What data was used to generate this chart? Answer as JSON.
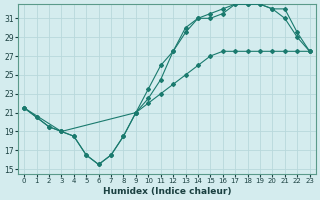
{
  "xlabel": "Humidex (Indice chaleur)",
  "bg_color": "#d4ecee",
  "grid_color": "#b8d8dc",
  "line_color": "#1a7a6e",
  "xlim": [
    -0.5,
    23.5
  ],
  "ylim": [
    14.5,
    32.5
  ],
  "xticks": [
    0,
    1,
    2,
    3,
    4,
    5,
    6,
    7,
    8,
    9,
    10,
    11,
    12,
    13,
    14,
    15,
    16,
    17,
    18,
    19,
    20,
    21,
    22,
    23
  ],
  "yticks": [
    15,
    17,
    19,
    21,
    23,
    25,
    27,
    29,
    31
  ],
  "curve1_x": [
    0,
    1,
    2,
    3,
    4,
    5,
    6,
    7,
    8,
    9,
    10,
    11,
    12,
    13,
    14,
    15,
    16,
    17,
    18,
    19,
    20,
    21,
    22,
    23
  ],
  "curve1_y": [
    21.5,
    20.5,
    19.5,
    19.0,
    18.5,
    16.5,
    15.5,
    16.5,
    18.5,
    21.0,
    22.0,
    23.0,
    24.0,
    25.0,
    26.0,
    27.0,
    27.5,
    27.5,
    27.5,
    27.5,
    27.5,
    27.5,
    27.5,
    27.5
  ],
  "curve2_x": [
    0,
    1,
    2,
    3,
    4,
    5,
    6,
    7,
    8,
    9,
    10,
    11,
    12,
    13,
    14,
    15,
    16,
    17,
    18,
    19,
    20,
    21,
    22,
    23
  ],
  "curve2_y": [
    21.5,
    20.5,
    19.5,
    19.0,
    18.5,
    16.5,
    15.5,
    16.5,
    18.5,
    21.0,
    23.5,
    26.0,
    27.5,
    30.0,
    31.0,
    31.0,
    31.5,
    32.5,
    32.5,
    32.5,
    32.0,
    31.0,
    29.0,
    27.5
  ],
  "curve3_x": [
    0,
    3,
    9,
    10,
    11,
    12,
    13,
    14,
    15,
    16,
    17,
    18,
    19,
    20,
    21,
    22,
    23
  ],
  "curve3_y": [
    21.5,
    19.0,
    21.0,
    22.5,
    24.5,
    27.5,
    29.5,
    31.0,
    31.5,
    32.0,
    32.5,
    32.5,
    32.5,
    32.0,
    32.0,
    29.5,
    27.5
  ]
}
